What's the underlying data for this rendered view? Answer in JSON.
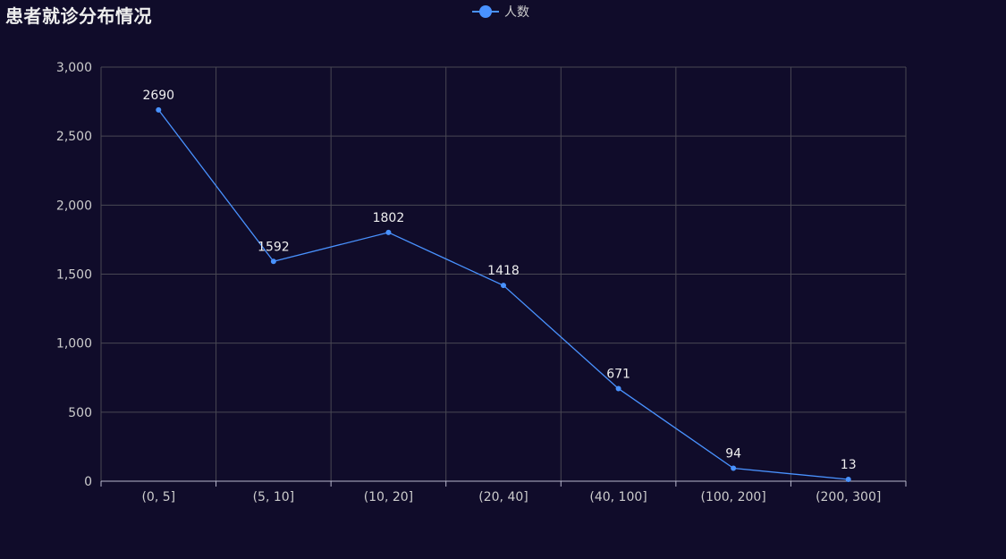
{
  "title": "患者就诊分布情况",
  "legend_label": "人数",
  "colors": {
    "background": "#100c2a",
    "series": "#4992ff",
    "grid": "#484753",
    "text": "#cccccc"
  },
  "chart_data": {
    "type": "line",
    "title": "患者就诊分布情况",
    "categories": [
      "(0, 5]",
      "(5, 10]",
      "(10, 20]",
      "(20, 40]",
      "(40, 100]",
      "(100, 200]",
      "(200, 300]"
    ],
    "series": [
      {
        "name": "人数",
        "values": [
          2690,
          1592,
          1802,
          1418,
          671,
          94,
          13
        ]
      }
    ],
    "ylim": [
      0,
      3000
    ],
    "yticks": [
      0,
      500,
      1000,
      1500,
      2000,
      2500,
      3000
    ],
    "ytick_labels": [
      "0",
      "500",
      "1,000",
      "1,500",
      "2,000",
      "2,500",
      "3,000"
    ],
    "grid": true,
    "legend_position": "top-center",
    "data_labels": true
  }
}
